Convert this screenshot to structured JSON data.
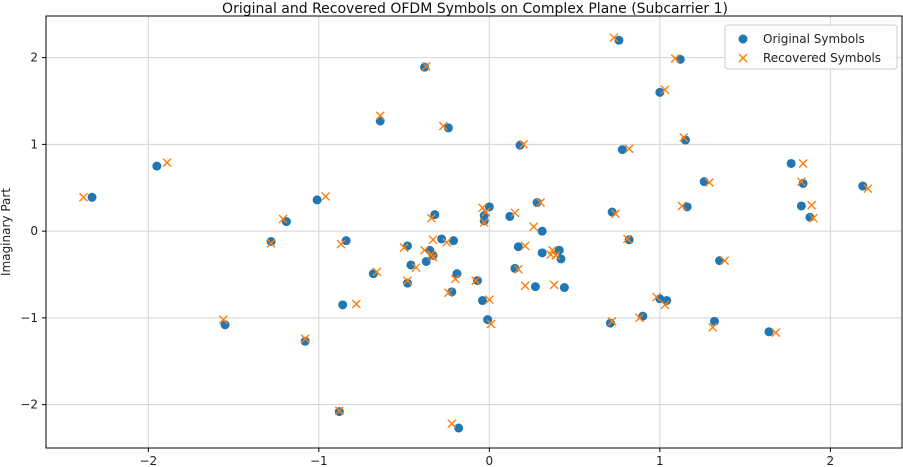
{
  "chart_data": {
    "type": "scatter",
    "title": "Original and Recovered OFDM Symbols on Complex Plane (Subcarrier 1)",
    "xlabel": "",
    "ylabel": "Imaginary Part",
    "xlim": [
      -2.6,
      2.42
    ],
    "ylim": [
      -2.5,
      2.48
    ],
    "xticks": [
      -2,
      -1,
      0,
      1,
      2
    ],
    "yticks": [
      -2,
      -1,
      0,
      1,
      2
    ],
    "xtick_labels": [
      "−2",
      "−1",
      "0",
      "1",
      "2"
    ],
    "ytick_labels": [
      "−2",
      "−1",
      "0",
      "1",
      "2"
    ],
    "grid": true,
    "legend_position": "top-right",
    "series": [
      {
        "name": "Original Symbols",
        "marker": "circle",
        "color": "#1f77b4",
        "points": [
          [
            0.76,
            2.2
          ],
          [
            -0.38,
            1.89
          ],
          [
            1.12,
            1.98
          ],
          [
            1.0,
            1.6
          ],
          [
            -0.64,
            1.27
          ],
          [
            -0.24,
            1.19
          ],
          [
            0.18,
            0.99
          ],
          [
            0.78,
            0.94
          ],
          [
            1.15,
            1.05
          ],
          [
            -1.95,
            0.75
          ],
          [
            -2.33,
            0.39
          ],
          [
            1.77,
            0.78
          ],
          [
            1.26,
            0.57
          ],
          [
            1.84,
            0.55
          ],
          [
            2.19,
            0.52
          ],
          [
            -1.01,
            0.36
          ],
          [
            0.28,
            0.33
          ],
          [
            1.83,
            0.29
          ],
          [
            1.16,
            0.28
          ],
          [
            0.72,
            0.22
          ],
          [
            1.88,
            0.16
          ],
          [
            -0.32,
            0.19
          ],
          [
            0.0,
            0.28
          ],
          [
            -0.03,
            0.18
          ],
          [
            0.12,
            0.17
          ],
          [
            -1.19,
            0.11
          ],
          [
            -0.03,
            0.12
          ],
          [
            0.31,
            0.0
          ],
          [
            -1.28,
            -0.12
          ],
          [
            -0.84,
            -0.11
          ],
          [
            -0.28,
            -0.09
          ],
          [
            -0.21,
            -0.11
          ],
          [
            0.82,
            -0.1
          ],
          [
            0.17,
            -0.18
          ],
          [
            -0.48,
            -0.17
          ],
          [
            0.41,
            -0.22
          ],
          [
            -0.35,
            -0.22
          ],
          [
            0.31,
            -0.25
          ],
          [
            -0.33,
            -0.28
          ],
          [
            -0.37,
            -0.35
          ],
          [
            0.42,
            -0.32
          ],
          [
            1.35,
            -0.34
          ],
          [
            -0.46,
            -0.39
          ],
          [
            -0.68,
            -0.49
          ],
          [
            0.15,
            -0.43
          ],
          [
            -0.19,
            -0.49
          ],
          [
            -0.07,
            -0.57
          ],
          [
            0.27,
            -0.64
          ],
          [
            -0.48,
            -0.6
          ],
          [
            0.44,
            -0.65
          ],
          [
            -0.22,
            -0.7
          ],
          [
            -0.04,
            -0.8
          ],
          [
            1.0,
            -0.78
          ],
          [
            1.04,
            -0.8
          ],
          [
            -0.86,
            -0.85
          ],
          [
            0.9,
            -0.98
          ],
          [
            -0.01,
            -1.02
          ],
          [
            1.32,
            -1.04
          ],
          [
            0.71,
            -1.06
          ],
          [
            -1.55,
            -1.08
          ],
          [
            1.64,
            -1.16
          ],
          [
            -1.08,
            -1.27
          ],
          [
            -0.88,
            -2.08
          ],
          [
            -0.18,
            -2.27
          ]
        ]
      },
      {
        "name": "Recovered Symbols",
        "marker": "x",
        "color": "#ff7f0e",
        "points": [
          [
            0.73,
            2.23
          ],
          [
            -0.37,
            1.9
          ],
          [
            1.09,
            1.99
          ],
          [
            1.03,
            1.63
          ],
          [
            -0.64,
            1.33
          ],
          [
            -0.27,
            1.21
          ],
          [
            0.2,
            1.0
          ],
          [
            0.82,
            0.95
          ],
          [
            1.14,
            1.08
          ],
          [
            -1.89,
            0.79
          ],
          [
            -2.38,
            0.39
          ],
          [
            1.84,
            0.78
          ],
          [
            1.29,
            0.56
          ],
          [
            1.83,
            0.57
          ],
          [
            2.22,
            0.49
          ],
          [
            -0.96,
            0.4
          ],
          [
            0.3,
            0.33
          ],
          [
            1.89,
            0.3
          ],
          [
            1.13,
            0.29
          ],
          [
            0.74,
            0.2
          ],
          [
            1.9,
            0.15
          ],
          [
            -0.34,
            0.15
          ],
          [
            -0.04,
            0.27
          ],
          [
            -0.02,
            0.22
          ],
          [
            0.15,
            0.21
          ],
          [
            -1.21,
            0.14
          ],
          [
            -0.03,
            0.1
          ],
          [
            0.26,
            0.05
          ],
          [
            -1.28,
            -0.14
          ],
          [
            -0.87,
            -0.15
          ],
          [
            -0.33,
            -0.1
          ],
          [
            -0.25,
            -0.13
          ],
          [
            0.81,
            -0.09
          ],
          [
            0.21,
            -0.17
          ],
          [
            -0.5,
            -0.19
          ],
          [
            0.37,
            -0.22
          ],
          [
            -0.34,
            -0.27
          ],
          [
            0.36,
            -0.27
          ],
          [
            -0.38,
            -0.22
          ],
          [
            -0.33,
            -0.3
          ],
          [
            0.39,
            -0.28
          ],
          [
            1.38,
            -0.34
          ],
          [
            -0.43,
            -0.42
          ],
          [
            -0.66,
            -0.47
          ],
          [
            0.17,
            -0.44
          ],
          [
            -0.2,
            -0.55
          ],
          [
            -0.08,
            -0.57
          ],
          [
            0.21,
            -0.63
          ],
          [
            -0.48,
            -0.57
          ],
          [
            0.38,
            -0.62
          ],
          [
            -0.24,
            -0.71
          ],
          [
            0.0,
            -0.79
          ],
          [
            0.98,
            -0.76
          ],
          [
            1.03,
            -0.85
          ],
          [
            -0.78,
            -0.84
          ],
          [
            0.88,
            -1.0
          ],
          [
            0.01,
            -1.07
          ],
          [
            1.31,
            -1.11
          ],
          [
            0.72,
            -1.04
          ],
          [
            -1.56,
            -1.02
          ],
          [
            1.68,
            -1.17
          ],
          [
            -1.08,
            -1.24
          ],
          [
            -0.88,
            -2.07
          ],
          [
            -0.22,
            -2.22
          ]
        ]
      }
    ]
  }
}
